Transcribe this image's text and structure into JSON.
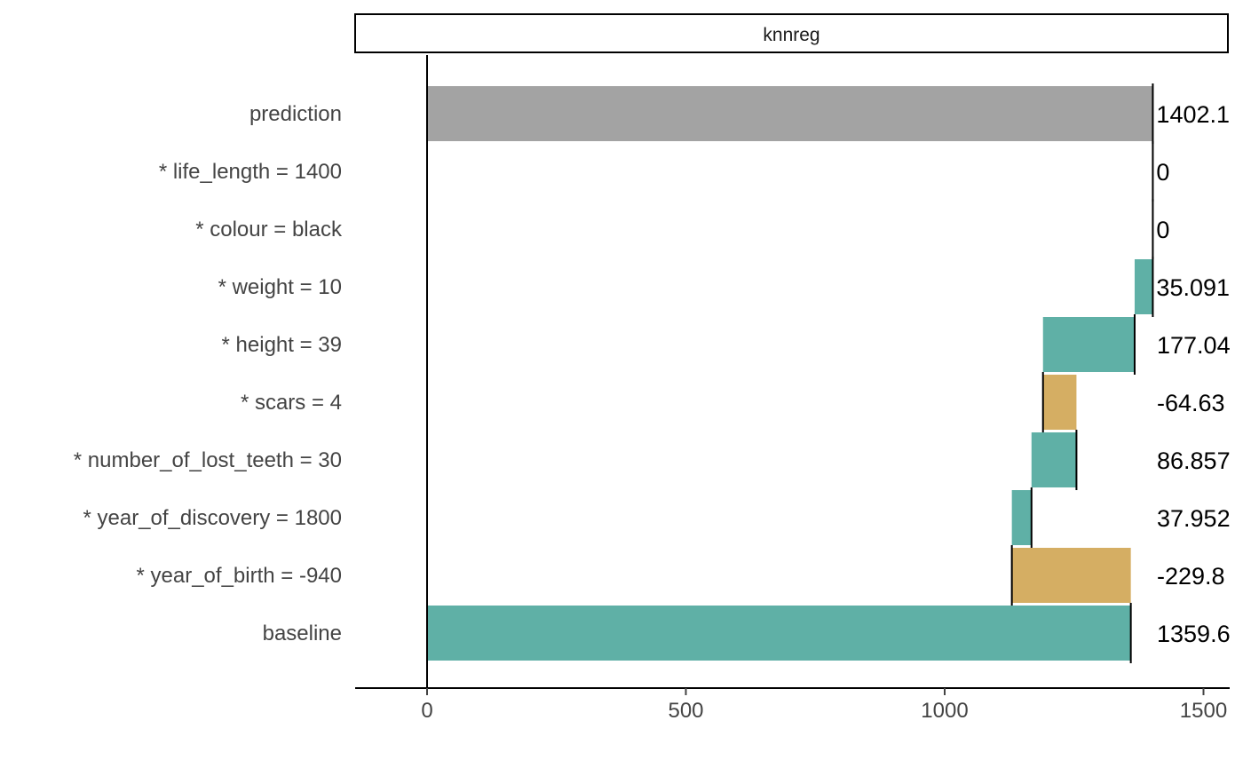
{
  "chart_data": {
    "type": "bar",
    "subtype": "break-down waterfall",
    "panel_title": "knnreg",
    "rows": [
      {
        "label": "prediction",
        "value_label": "1402.1",
        "start": 0,
        "end": 1402.1,
        "kind": "prediction"
      },
      {
        "label": "* life_length = 1400",
        "value_label": "0",
        "start": 1402.1,
        "end": 1402.1,
        "kind": "zero"
      },
      {
        "label": "* colour = black",
        "value_label": "0",
        "start": 1402.1,
        "end": 1402.1,
        "kind": "zero"
      },
      {
        "label": "* weight = 10",
        "value_label": "35.091",
        "start": 1367.0,
        "end": 1402.1,
        "kind": "positive"
      },
      {
        "label": "* height = 39",
        "value_label": "177.04",
        "start": 1189.95,
        "end": 1367.0,
        "kind": "positive"
      },
      {
        "label": "* scars = 4",
        "value_label": "-64.63",
        "start": 1254.58,
        "end": 1189.95,
        "kind": "negative"
      },
      {
        "label": "* number_of_lost_teeth = 30",
        "value_label": "86.857",
        "start": 1167.73,
        "end": 1254.58,
        "kind": "positive"
      },
      {
        "label": "* year_of_discovery = 1800",
        "value_label": "37.952",
        "start": 1129.78,
        "end": 1167.73,
        "kind": "positive"
      },
      {
        "label": "* year_of_birth = -940",
        "value_label": "-229.8",
        "start": 1359.6,
        "end": 1129.78,
        "kind": "negative"
      },
      {
        "label": "baseline",
        "value_label": "1359.6",
        "start": 0,
        "end": 1359.6,
        "kind": "baseline"
      }
    ],
    "x_ticks": [
      0,
      500,
      1000,
      1500
    ],
    "xlim": [
      -138,
      1550
    ],
    "xlabel": "",
    "ylabel": "",
    "grid": false,
    "legend": "none",
    "colors": {
      "prediction": "#a3a3a3",
      "positive": "#5fb0a6",
      "negative": "#d5ae63",
      "baseline": "#5fb0a6"
    }
  }
}
